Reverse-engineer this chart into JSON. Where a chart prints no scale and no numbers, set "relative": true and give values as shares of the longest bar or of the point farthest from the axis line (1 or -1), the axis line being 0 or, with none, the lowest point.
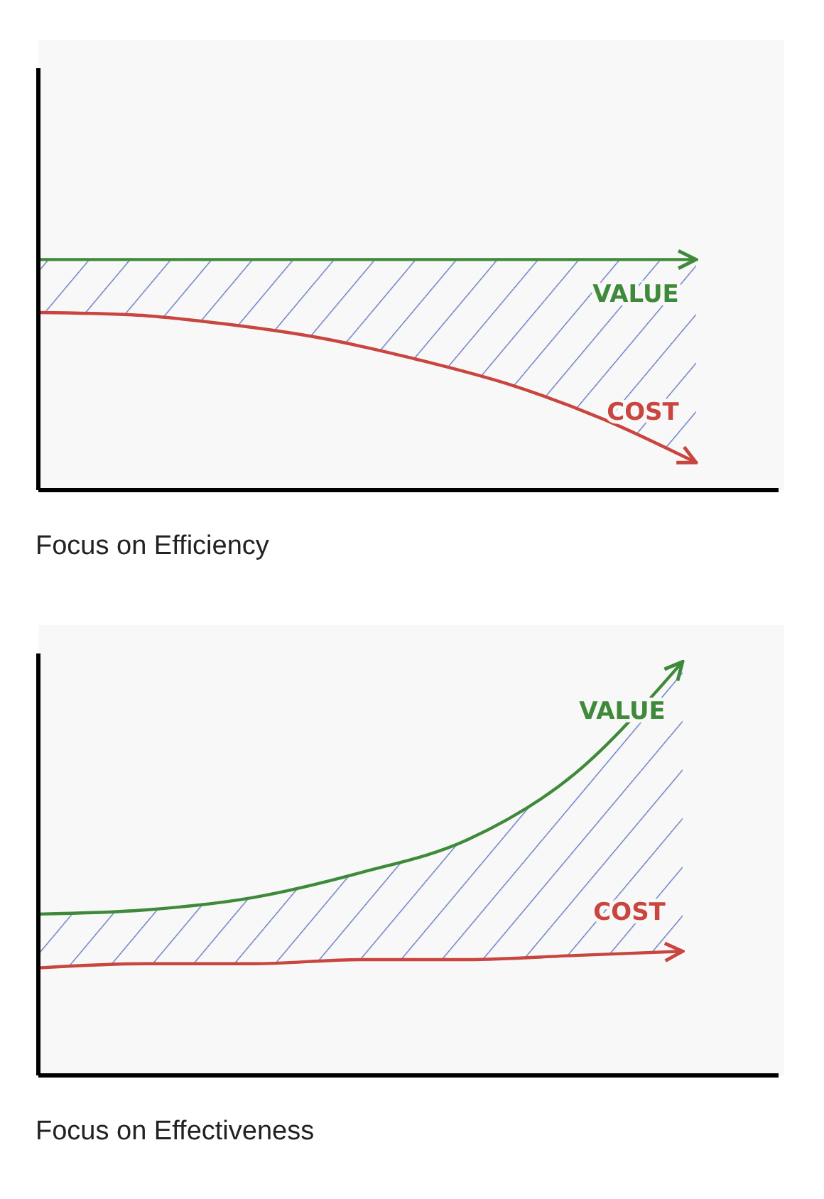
{
  "chart_data": [
    {
      "type": "line",
      "title": "Focus on Efficiency",
      "relative": true,
      "marker": "none",
      "categories": [
        null,
        null,
        null,
        null,
        null,
        null,
        null,
        null,
        null
      ],
      "series": [
        {
          "name": "VALUE",
          "color": "#3f8a3a",
          "values": [
            1,
            1,
            1,
            1,
            1,
            1,
            1,
            1,
            null
          ],
          "lower": [
            0.77,
            0.76,
            0.72,
            0.66,
            0.57,
            0.46,
            0.31,
            0.12,
            null
          ],
          "upper": [
            1,
            1,
            1,
            1,
            1,
            1,
            1,
            1,
            null
          ]
        },
        {
          "name": "COST",
          "color": "#c9453f",
          "values": [
            0.77,
            0.76,
            0.72,
            0.66,
            0.57,
            0.46,
            0.31,
            0.12,
            null
          ]
        }
      ]
    },
    {
      "type": "line",
      "title": "Focus on Effectiveness",
      "relative": true,
      "marker": "none",
      "categories": [
        null,
        null,
        null,
        null,
        null,
        null,
        null,
        null
      ],
      "series": [
        {
          "name": "VALUE",
          "color": "#3f8a3a",
          "values": [
            0.39,
            0.4,
            0.43,
            0.49,
            0.57,
            0.73,
            1,
            null
          ],
          "lower": [
            0.26,
            0.27,
            0.27,
            0.28,
            0.28,
            0.29,
            0.3,
            null
          ],
          "upper": [
            0.39,
            0.4,
            0.43,
            0.49,
            0.57,
            0.73,
            1,
            null
          ]
        },
        {
          "name": "COST",
          "color": "#c9453f",
          "values": [
            0.26,
            0.27,
            0.27,
            0.28,
            0.28,
            0.29,
            0.3,
            null
          ]
        }
      ]
    }
  ]
}
